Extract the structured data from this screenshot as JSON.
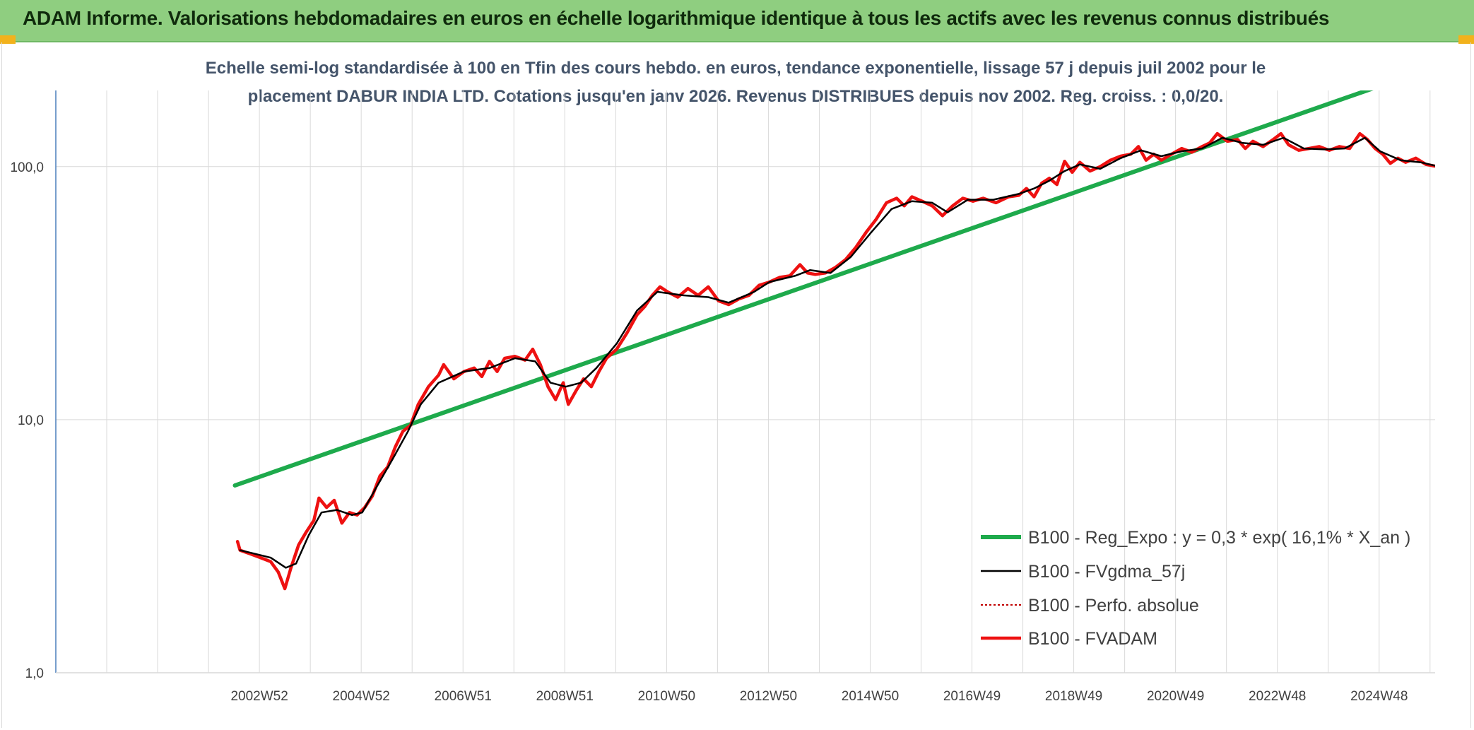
{
  "banner": {
    "title": "ADAM Informe. Valorisations hebdomadaires en euros en échelle logarithmique identique à tous les actifs avec les revenus connus distribués"
  },
  "colors": {
    "banner_bg": "#8fce80",
    "reg_expo": "#1eaa4c",
    "fvgdma": "#000000",
    "perfo": "#c00000",
    "fvadam": "#ee1111",
    "grid": "#d9d9d9",
    "axis": "#4a7ebb"
  },
  "chart_data": {
    "type": "line",
    "title_lines": [
      "Echelle semi-log standardisée à 100 en Tfin des cours hebdo. en euros, tendance exponentielle, lissage 57 j depuis juil 2002 pour le",
      "placement DABUR INDIA LTD. Cotations jusqu'en janv 2026. Revenus DISTRIBUES depuis nov 2002. Reg. croiss. : 0,0/20."
    ],
    "yscale": "log",
    "ylim": [
      1,
      200
    ],
    "yticks": [
      {
        "value": 1,
        "label": "1,0"
      },
      {
        "value": 10,
        "label": "10,0"
      },
      {
        "value": 100,
        "label": "100,0"
      }
    ],
    "xlim": [
      1998.98,
      2026.08
    ],
    "xticks": [
      {
        "x": 2002.98,
        "label": "2002W52"
      },
      {
        "x": 2004.98,
        "label": "2004W52"
      },
      {
        "x": 2006.98,
        "label": "2006W51"
      },
      {
        "x": 2008.98,
        "label": "2008W51"
      },
      {
        "x": 2010.98,
        "label": "2010W50"
      },
      {
        "x": 2012.98,
        "label": "2012W50"
      },
      {
        "x": 2014.98,
        "label": "2014W50"
      },
      {
        "x": 2016.98,
        "label": "2016W49"
      },
      {
        "x": 2018.98,
        "label": "2018W49"
      },
      {
        "x": 2020.98,
        "label": "2020W49"
      },
      {
        "x": 2022.98,
        "label": "2022W48"
      },
      {
        "x": 2024.98,
        "label": "2024W48"
      }
    ],
    "grid": true,
    "legend_position": "bottom-right",
    "series": [
      {
        "name": "B100 - Reg_Expo : y = 0,3 * exp( 16,1% *  X_an )",
        "key": "reg",
        "style": "thick",
        "points": [
          [
            2002.5,
            5.5
          ],
          [
            2026.0,
            245
          ]
        ]
      },
      {
        "name": "B100 - FVgdma_57j",
        "key": "gdma",
        "style": "thin",
        "points": [
          [
            2002.6,
            3.05
          ],
          [
            2002.9,
            2.95
          ],
          [
            2003.2,
            2.85
          ],
          [
            2003.5,
            2.6
          ],
          [
            2003.7,
            2.7
          ],
          [
            2003.95,
            3.5
          ],
          [
            2004.2,
            4.3
          ],
          [
            2004.5,
            4.4
          ],
          [
            2004.8,
            4.2
          ],
          [
            2005.0,
            4.3
          ],
          [
            2005.3,
            5.5
          ],
          [
            2005.6,
            7.0
          ],
          [
            2005.9,
            9.0
          ],
          [
            2006.15,
            11.5
          ],
          [
            2006.5,
            14.0
          ],
          [
            2007.0,
            15.5
          ],
          [
            2007.5,
            16.0
          ],
          [
            2008.0,
            17.5
          ],
          [
            2008.4,
            17.0
          ],
          [
            2008.7,
            14.0
          ],
          [
            2009.0,
            13.5
          ],
          [
            2009.3,
            14.0
          ],
          [
            2009.6,
            16.0
          ],
          [
            2010.0,
            20.0
          ],
          [
            2010.4,
            27.0
          ],
          [
            2010.8,
            32.0
          ],
          [
            2011.3,
            31.0
          ],
          [
            2011.8,
            30.5
          ],
          [
            2012.2,
            29.0
          ],
          [
            2012.7,
            32.0
          ],
          [
            2013.0,
            35.0
          ],
          [
            2013.5,
            37.0
          ],
          [
            2013.8,
            39.0
          ],
          [
            2014.2,
            38.0
          ],
          [
            2014.6,
            44.0
          ],
          [
            2015.0,
            55.0
          ],
          [
            2015.4,
            68.0
          ],
          [
            2015.8,
            73.0
          ],
          [
            2016.2,
            72.0
          ],
          [
            2016.5,
            66.0
          ],
          [
            2016.9,
            74.0
          ],
          [
            2017.4,
            74.0
          ],
          [
            2017.9,
            78.0
          ],
          [
            2018.2,
            82.0
          ],
          [
            2018.5,
            88.0
          ],
          [
            2018.8,
            96.0
          ],
          [
            2019.1,
            102.0
          ],
          [
            2019.5,
            98.0
          ],
          [
            2019.9,
            108.0
          ],
          [
            2020.3,
            116.0
          ],
          [
            2020.7,
            110.0
          ],
          [
            2021.1,
            115.0
          ],
          [
            2021.5,
            118.0
          ],
          [
            2021.9,
            130.0
          ],
          [
            2022.3,
            124.0
          ],
          [
            2022.7,
            122.0
          ],
          [
            2023.1,
            130.0
          ],
          [
            2023.5,
            118.0
          ],
          [
            2023.9,
            117.0
          ],
          [
            2024.3,
            118.0
          ],
          [
            2024.7,
            130.0
          ],
          [
            2025.0,
            115.0
          ],
          [
            2025.4,
            106.0
          ],
          [
            2025.8,
            104.0
          ],
          [
            2026.07,
            101.0
          ]
        ]
      },
      {
        "name": "B100 - Perfo. absolue",
        "key": "perfo",
        "style": "dotted",
        "points": []
      },
      {
        "name": "B100 - FVADAM",
        "key": "fvadam",
        "style": "thick",
        "points": [
          [
            2002.55,
            3.3
          ],
          [
            2002.6,
            3.05
          ],
          [
            2002.8,
            2.95
          ],
          [
            2003.0,
            2.85
          ],
          [
            2003.2,
            2.75
          ],
          [
            2003.35,
            2.5
          ],
          [
            2003.48,
            2.15
          ],
          [
            2003.6,
            2.6
          ],
          [
            2003.75,
            3.2
          ],
          [
            2003.9,
            3.6
          ],
          [
            2004.05,
            4.0
          ],
          [
            2004.15,
            4.9
          ],
          [
            2004.3,
            4.5
          ],
          [
            2004.45,
            4.8
          ],
          [
            2004.6,
            3.9
          ],
          [
            2004.75,
            4.3
          ],
          [
            2004.9,
            4.2
          ],
          [
            2005.05,
            4.5
          ],
          [
            2005.2,
            5.0
          ],
          [
            2005.35,
            6.0
          ],
          [
            2005.5,
            6.5
          ],
          [
            2005.65,
            7.8
          ],
          [
            2005.8,
            9.0
          ],
          [
            2005.95,
            9.5
          ],
          [
            2006.1,
            11.5
          ],
          [
            2006.3,
            13.5
          ],
          [
            2006.5,
            15.0
          ],
          [
            2006.6,
            16.5
          ],
          [
            2006.8,
            14.5
          ],
          [
            2007.0,
            15.5
          ],
          [
            2007.2,
            16.0
          ],
          [
            2007.35,
            14.8
          ],
          [
            2007.5,
            17.0
          ],
          [
            2007.65,
            15.5
          ],
          [
            2007.8,
            17.5
          ],
          [
            2008.0,
            17.8
          ],
          [
            2008.2,
            17.2
          ],
          [
            2008.35,
            19.0
          ],
          [
            2008.5,
            16.5
          ],
          [
            2008.65,
            13.5
          ],
          [
            2008.8,
            12.0
          ],
          [
            2008.95,
            14.0
          ],
          [
            2009.05,
            11.5
          ],
          [
            2009.2,
            13.0
          ],
          [
            2009.35,
            14.5
          ],
          [
            2009.5,
            13.5
          ],
          [
            2009.65,
            15.5
          ],
          [
            2009.8,
            17.5
          ],
          [
            2010.0,
            19.0
          ],
          [
            2010.2,
            22.0
          ],
          [
            2010.4,
            26.0
          ],
          [
            2010.55,
            28.0
          ],
          [
            2010.7,
            31.0
          ],
          [
            2010.85,
            33.5
          ],
          [
            2011.0,
            32.0
          ],
          [
            2011.2,
            30.5
          ],
          [
            2011.4,
            33.0
          ],
          [
            2011.6,
            31.0
          ],
          [
            2011.8,
            33.5
          ],
          [
            2012.0,
            29.5
          ],
          [
            2012.2,
            28.5
          ],
          [
            2012.4,
            30.0
          ],
          [
            2012.6,
            31.0
          ],
          [
            2012.8,
            34.0
          ],
          [
            2013.0,
            35.0
          ],
          [
            2013.2,
            36.5
          ],
          [
            2013.4,
            37.0
          ],
          [
            2013.6,
            41.0
          ],
          [
            2013.75,
            38.0
          ],
          [
            2013.9,
            37.5
          ],
          [
            2014.1,
            38.0
          ],
          [
            2014.3,
            40.0
          ],
          [
            2014.5,
            43.0
          ],
          [
            2014.7,
            48.0
          ],
          [
            2014.9,
            55.0
          ],
          [
            2015.1,
            62.0
          ],
          [
            2015.3,
            72.0
          ],
          [
            2015.5,
            75.0
          ],
          [
            2015.65,
            70.0
          ],
          [
            2015.8,
            76.0
          ],
          [
            2016.0,
            73.0
          ],
          [
            2016.2,
            70.0
          ],
          [
            2016.4,
            64.0
          ],
          [
            2016.6,
            70.0
          ],
          [
            2016.8,
            75.0
          ],
          [
            2017.0,
            73.0
          ],
          [
            2017.2,
            75.0
          ],
          [
            2017.45,
            72.0
          ],
          [
            2017.7,
            76.0
          ],
          [
            2017.9,
            77.0
          ],
          [
            2018.05,
            82.0
          ],
          [
            2018.2,
            76.0
          ],
          [
            2018.35,
            86.0
          ],
          [
            2018.5,
            90.0
          ],
          [
            2018.65,
            85.0
          ],
          [
            2018.8,
            105.0
          ],
          [
            2018.95,
            95.0
          ],
          [
            2019.1,
            104.0
          ],
          [
            2019.3,
            96.0
          ],
          [
            2019.5,
            100.0
          ],
          [
            2019.7,
            106.0
          ],
          [
            2019.9,
            110.0
          ],
          [
            2020.1,
            112.0
          ],
          [
            2020.25,
            120.0
          ],
          [
            2020.4,
            106.0
          ],
          [
            2020.55,
            112.0
          ],
          [
            2020.7,
            106.0
          ],
          [
            2020.9,
            112.0
          ],
          [
            2021.1,
            118.0
          ],
          [
            2021.3,
            114.0
          ],
          [
            2021.5,
            120.0
          ],
          [
            2021.65,
            124.0
          ],
          [
            2021.8,
            135.0
          ],
          [
            2022.0,
            126.0
          ],
          [
            2022.2,
            128.0
          ],
          [
            2022.35,
            118.0
          ],
          [
            2022.5,
            126.0
          ],
          [
            2022.7,
            120.0
          ],
          [
            2022.9,
            128.0
          ],
          [
            2023.05,
            135.0
          ],
          [
            2023.2,
            122.0
          ],
          [
            2023.4,
            116.0
          ],
          [
            2023.6,
            118.0
          ],
          [
            2023.8,
            120.0
          ],
          [
            2024.0,
            116.0
          ],
          [
            2024.2,
            120.0
          ],
          [
            2024.4,
            118.0
          ],
          [
            2024.6,
            135.0
          ],
          [
            2024.75,
            128.0
          ],
          [
            2024.9,
            118.0
          ],
          [
            2025.05,
            112.0
          ],
          [
            2025.2,
            103.0
          ],
          [
            2025.35,
            108.0
          ],
          [
            2025.5,
            104.0
          ],
          [
            2025.7,
            108.0
          ],
          [
            2025.9,
            102.0
          ],
          [
            2026.07,
            100.5
          ]
        ]
      }
    ]
  }
}
